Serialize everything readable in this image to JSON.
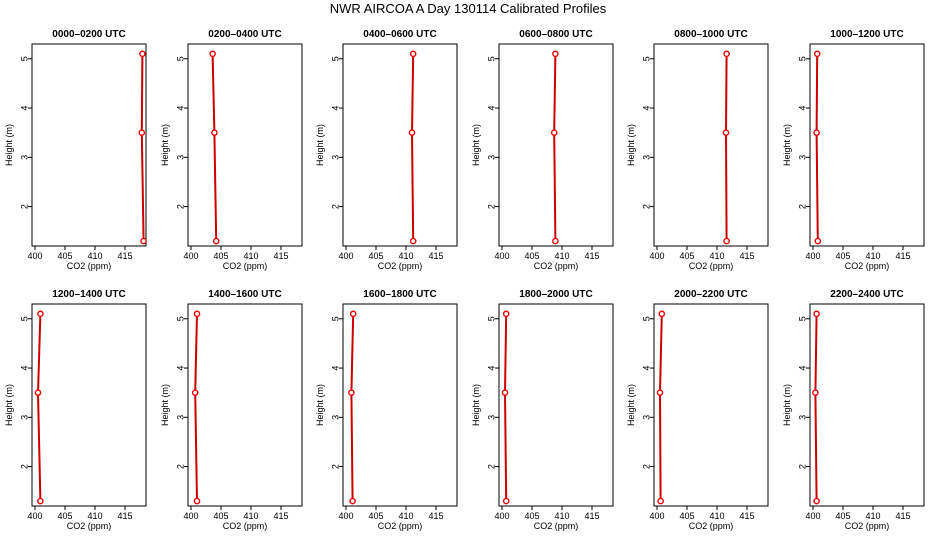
{
  "title": "NWR AIRCOA A  Day 130114  Calibrated Profiles",
  "chart_data": {
    "type": "line",
    "xlabel": "CO2 (ppm)",
    "ylabel": "Height (m)",
    "xlim": [
      399.5,
      418.5
    ],
    "ylim": [
      1.2,
      5.3
    ],
    "xticks": [
      400,
      405,
      410,
      415
    ],
    "yticks": [
      2,
      3,
      4,
      5
    ],
    "colors": {
      "line": "#cc0000",
      "point": "#e80000",
      "axis": "#000000"
    },
    "panels": [
      {
        "title": "0000–0200 UTC",
        "x": [
          418.1,
          417.8,
          417.9
        ],
        "y": [
          1.3,
          3.5,
          5.1
        ]
      },
      {
        "title": "0200–0400 UTC",
        "x": [
          404.2,
          403.9,
          403.6
        ],
        "y": [
          1.3,
          3.5,
          5.1
        ]
      },
      {
        "title": "0400–0600 UTC",
        "x": [
          411.2,
          411.0,
          411.2
        ],
        "y": [
          1.3,
          3.5,
          5.1
        ]
      },
      {
        "title": "0600–0800 UTC",
        "x": [
          408.9,
          408.7,
          408.9
        ],
        "y": [
          1.3,
          3.5,
          5.1
        ]
      },
      {
        "title": "0800–1000 UTC",
        "x": [
          411.6,
          411.5,
          411.6
        ],
        "y": [
          1.3,
          3.5,
          5.1
        ]
      },
      {
        "title": "1000–1200 UTC",
        "x": [
          400.8,
          400.6,
          400.7
        ],
        "y": [
          1.3,
          3.5,
          5.1
        ]
      },
      {
        "title": "1200–1400 UTC",
        "x": [
          400.9,
          400.5,
          400.9
        ],
        "y": [
          1.3,
          3.5,
          5.1
        ]
      },
      {
        "title": "1400–1600 UTC",
        "x": [
          401.0,
          400.7,
          401.0
        ],
        "y": [
          1.3,
          3.5,
          5.1
        ]
      },
      {
        "title": "1600–1800 UTC",
        "x": [
          401.1,
          400.9,
          401.2
        ],
        "y": [
          1.3,
          3.5,
          5.1
        ]
      },
      {
        "title": "1800–2000 UTC",
        "x": [
          400.7,
          400.5,
          400.7
        ],
        "y": [
          1.3,
          3.5,
          5.1
        ]
      },
      {
        "title": "2000–2200 UTC",
        "x": [
          400.6,
          400.5,
          400.8
        ],
        "y": [
          1.3,
          3.5,
          5.1
        ]
      },
      {
        "title": "2200–2400 UTC",
        "x": [
          400.6,
          400.4,
          400.6
        ],
        "y": [
          1.3,
          3.5,
          5.1
        ]
      }
    ]
  }
}
